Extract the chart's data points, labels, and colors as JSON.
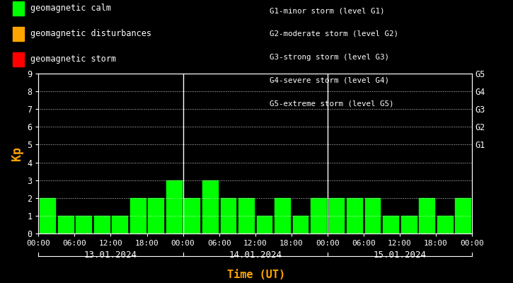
{
  "kp_values": [
    2,
    1,
    1,
    1,
    1,
    2,
    2,
    3,
    2,
    3,
    2,
    2,
    1,
    2,
    1,
    2,
    2,
    2,
    2,
    1,
    1,
    2,
    1,
    2
  ],
  "bar_color": "#00ff00",
  "bg_color": "#000000",
  "text_color": "#ffffff",
  "xlabel_color": "#ffa500",
  "ylabel_color": "#ffa500",
  "day_labels": [
    "13.01.2024",
    "14.01.2024",
    "15.01.2024"
  ],
  "xlabel": "Time (UT)",
  "ylabel": "Kp",
  "ylim": [
    0,
    9
  ],
  "yticks": [
    0,
    1,
    2,
    3,
    4,
    5,
    6,
    7,
    8,
    9
  ],
  "right_labels": [
    "G1",
    "G2",
    "G3",
    "G4",
    "G5"
  ],
  "right_label_yvals": [
    5,
    6,
    7,
    8,
    9
  ],
  "legend_items": [
    {
      "label": "geomagnetic calm",
      "color": "#00ff00"
    },
    {
      "label": "geomagnetic disturbances",
      "color": "#ffa500"
    },
    {
      "label": "geomagnetic storm",
      "color": "#ff0000"
    }
  ],
  "storm_labels": [
    "G1-minor storm (level G1)",
    "G2-moderate storm (level G2)",
    "G3-strong storm (level G3)",
    "G4-severe storm (level G4)",
    "G5-extreme storm (level G5)"
  ],
  "bars_per_day": 8,
  "num_days": 3
}
